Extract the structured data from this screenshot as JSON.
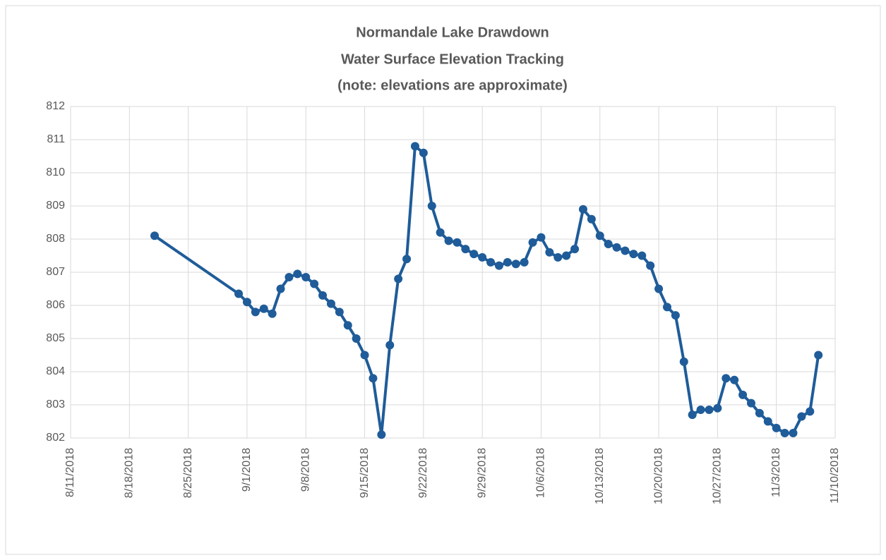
{
  "chart_data": {
    "type": "line",
    "title": [
      "Normandale Lake Drawdown",
      "Water Surface Elevation Tracking",
      "(note: elevations are approximate)"
    ],
    "x": [
      "8/21/2018",
      "8/31/2018",
      "9/1/2018",
      "9/2/2018",
      "9/3/2018",
      "9/4/2018",
      "9/5/2018",
      "9/6/2018",
      "9/7/2018",
      "9/8/2018",
      "9/9/2018",
      "9/10/2018",
      "9/11/2018",
      "9/12/2018",
      "9/13/2018",
      "9/14/2018",
      "9/15/2018",
      "9/16/2018",
      "9/17/2018",
      "9/18/2018",
      "9/19/2018",
      "9/20/2018",
      "9/21/2018",
      "9/22/2018",
      "9/23/2018",
      "9/24/2018",
      "9/25/2018",
      "9/26/2018",
      "9/27/2018",
      "9/28/2018",
      "9/29/2018",
      "9/30/2018",
      "10/1/2018",
      "10/2/2018",
      "10/3/2018",
      "10/4/2018",
      "10/5/2018",
      "10/6/2018",
      "10/7/2018",
      "10/8/2018",
      "10/9/2018",
      "10/10/2018",
      "10/11/2018",
      "10/12/2018",
      "10/13/2018",
      "10/14/2018",
      "10/15/2018",
      "10/16/2018",
      "10/17/2018",
      "10/18/2018",
      "10/19/2018",
      "10/20/2018",
      "10/21/2018",
      "10/22/2018",
      "10/23/2018",
      "10/24/2018",
      "10/25/2018",
      "10/26/2018",
      "10/27/2018",
      "10/28/2018",
      "10/29/2018",
      "10/30/2018",
      "10/31/2018",
      "11/1/2018",
      "11/2/2018",
      "11/3/2018",
      "11/4/2018",
      "11/5/2018",
      "11/6/2018",
      "11/7/2018",
      "11/8/2018"
    ],
    "series": [
      {
        "color": "#1f5c99",
        "values": [
          808.1,
          806.35,
          806.1,
          805.8,
          805.9,
          805.75,
          806.5,
          806.85,
          806.95,
          806.85,
          806.65,
          806.3,
          806.05,
          805.8,
          805.4,
          805.0,
          804.5,
          803.8,
          802.1,
          804.8,
          806.8,
          807.4,
          810.8,
          810.6,
          809.0,
          808.2,
          807.95,
          807.9,
          807.7,
          807.55,
          807.45,
          807.3,
          807.2,
          807.3,
          807.25,
          807.3,
          807.9,
          808.05,
          807.6,
          807.45,
          807.5,
          807.7,
          808.9,
          808.6,
          808.1,
          807.85,
          807.75,
          807.65,
          807.55,
          807.5,
          807.2,
          806.5,
          805.95,
          805.7,
          804.3,
          802.7,
          802.85,
          802.85,
          802.9,
          803.8,
          803.75,
          803.3,
          803.05,
          802.75,
          802.5,
          802.3,
          802.15,
          802.15,
          802.65,
          802.8,
          804.5
        ]
      }
    ],
    "xlim": [
      "8/11/2018",
      "11/10/2018"
    ],
    "xticks": [
      "8/11/2018",
      "8/18/2018",
      "8/25/2018",
      "9/1/2018",
      "9/8/2018",
      "9/15/2018",
      "9/22/2018",
      "9/29/2018",
      "10/6/2018",
      "10/13/2018",
      "10/20/2018",
      "10/27/2018",
      "11/3/2018",
      "11/10/2018"
    ],
    "ylim": [
      802,
      812
    ],
    "yticks": [
      802,
      803,
      804,
      805,
      806,
      807,
      808,
      809,
      810,
      811,
      812
    ],
    "grid": true
  }
}
